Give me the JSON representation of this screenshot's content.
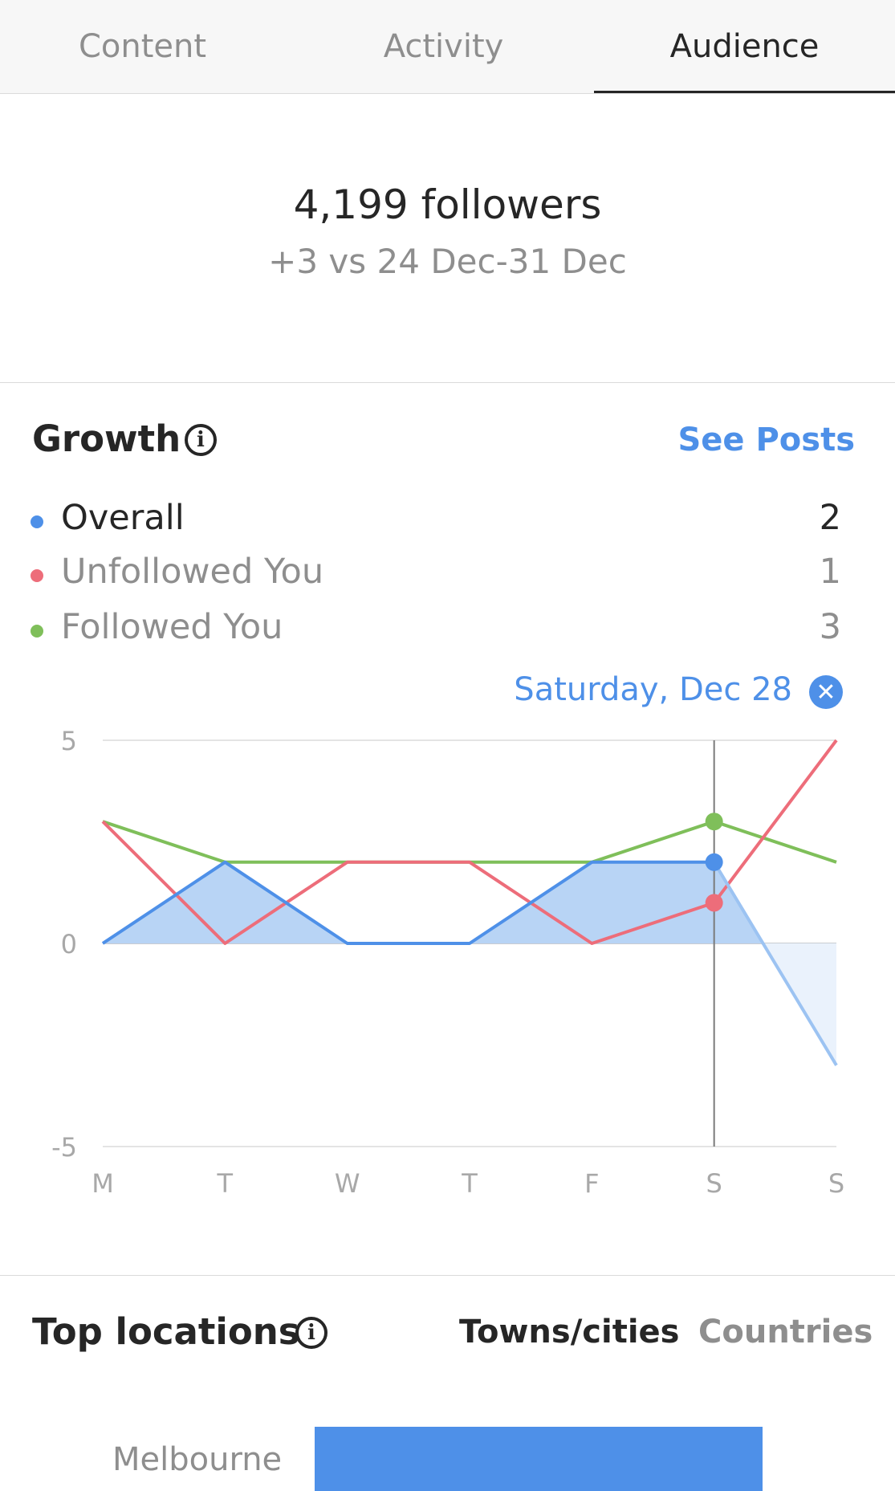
{
  "tabs": [
    {
      "label": "Content",
      "active": false
    },
    {
      "label": "Activity",
      "active": false
    },
    {
      "label": "Audience",
      "active": true
    }
  ],
  "summary": {
    "followers": "4,199 followers",
    "delta": "+3 vs 24 Dec-31 Dec"
  },
  "growth": {
    "title": "Growth",
    "info_icon": "info-icon",
    "see_posts": "See Posts",
    "legend": [
      {
        "label": "Overall",
        "value": "2",
        "color": "#4e90e8"
      },
      {
        "label": "Unfollowed You",
        "value": "1",
        "color": "#ed6d7a"
      },
      {
        "label": "Followed You",
        "value": "3",
        "color": "#7fbf5a"
      }
    ],
    "selected_date": "Saturday, Dec 28",
    "close_icon": "close-icon"
  },
  "chart_data": {
    "type": "line",
    "categories": [
      "M",
      "T",
      "W",
      "T",
      "F",
      "S",
      "S"
    ],
    "y_ticks": [
      "5",
      "0",
      "-5"
    ],
    "ylim": [
      -5,
      5
    ],
    "grid": true,
    "selected_index": 5,
    "series": [
      {
        "name": "Overall",
        "values": [
          0,
          2,
          0,
          0,
          2,
          2,
          -3
        ],
        "color": "#4e90e8",
        "fill": true
      },
      {
        "name": "Unfollowed You",
        "values": [
          3,
          0,
          2,
          2,
          0,
          1,
          5
        ],
        "color": "#ed6d7a"
      },
      {
        "name": "Followed You",
        "values": [
          3,
          2,
          2,
          2,
          2,
          3,
          2
        ],
        "color": "#7fbf5a"
      }
    ]
  },
  "top_locations": {
    "title": "Top locations",
    "tabs": [
      {
        "label": "Towns/cities",
        "active": true
      },
      {
        "label": "Countries",
        "active": false
      }
    ],
    "items": [
      {
        "name": "Melbourne",
        "share": 1.0
      }
    ]
  }
}
